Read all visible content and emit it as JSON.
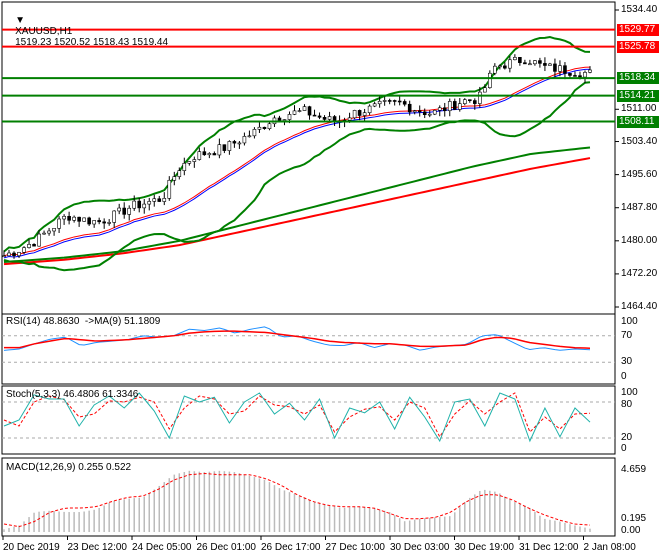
{
  "header": {
    "symbol": "XAUUSD,H1",
    "ohlc": "1519.23 1520.52 1518.43 1519.44"
  },
  "colors": {
    "bull": "#00aa00",
    "resistance": "#ff0000",
    "support": "#007f00",
    "ma_red": "#ff0000",
    "ma_green": "#008000",
    "rsi": "#1e90ff",
    "stoch": "#20b2aa"
  },
  "chart_data": [
    {
      "type": "candlestick",
      "panel": "price",
      "ylim": [
        1464.4,
        1534.4
      ],
      "y_ticks": [
        "1534.40",
        "1511.00",
        "1503.40",
        "1495.60",
        "1487.80",
        "1480.00",
        "1472.20",
        "1464.40"
      ],
      "levels": [
        {
          "value": "1529.77",
          "kind": "resistance"
        },
        {
          "value": "1525.78",
          "kind": "resistance"
        },
        {
          "value": "1518.34",
          "kind": "support"
        },
        {
          "value": "1514.21",
          "kind": "support"
        },
        {
          "value": "1508.11",
          "kind": "support"
        }
      ],
      "x_ticks": [
        "20 Dec 2019",
        "23 Dec 12:00",
        "24 Dec 05:00",
        "26 Dec 01:00",
        "26 Dec 17:00",
        "27 Dec 10:00",
        "30 Dec 03:00",
        "30 Dec 19:00",
        "31 Dec 12:00",
        "2 Jan 08:00"
      ],
      "close_approx": [
        1476.5,
        1478,
        1480,
        1483,
        1486,
        1485,
        1484.5,
        1486,
        1488,
        1489,
        1490,
        1497,
        1500,
        1501,
        1502,
        1504,
        1506,
        1509,
        1510,
        1510.5,
        1509,
        1508,
        1510,
        1511,
        1512,
        1512.5,
        1511,
        1510,
        1511.5,
        1513,
        1513.5,
        1521,
        1522,
        1523,
        1521,
        1520.5,
        1520,
        1519.44
      ],
      "ma_red": [
        1474.5,
        1475.5,
        1477,
        1479,
        1482,
        1485,
        1488,
        1491,
        1494,
        1497,
        1499.5
      ],
      "ma_green": [
        1475,
        1476,
        1477.5,
        1480,
        1483.5,
        1487,
        1490.5,
        1494,
        1497.5,
        1500.5,
        1502
      ]
    },
    {
      "type": "line",
      "panel": "rsi",
      "title": "RSI(14) 48.8630  ->MA(9) 51.1809",
      "ylim": [
        0,
        100
      ],
      "y_ticks": [
        "100",
        "70",
        "30",
        "0"
      ],
      "rsi": [
        48,
        50,
        58,
        65,
        68,
        55,
        60,
        62,
        64,
        70,
        68,
        70,
        80,
        78,
        82,
        74,
        80,
        84,
        68,
        70,
        62,
        56,
        55,
        60,
        52,
        58,
        56,
        48,
        53,
        55,
        57,
        70,
        72,
        60,
        49,
        52,
        48,
        50,
        48.86
      ],
      "ma": [
        52,
        52,
        58,
        62,
        66,
        64,
        62,
        63,
        64,
        66,
        68,
        70,
        74,
        76,
        77,
        77,
        76,
        75,
        72,
        69,
        66,
        62,
        60,
        59,
        58,
        58,
        56,
        54,
        54,
        55,
        56,
        64,
        68,
        66,
        60,
        57,
        54,
        52,
        51.18
      ]
    },
    {
      "type": "line",
      "panel": "stoch",
      "title": "Stoch(5,3,3) 46.4806 61.3346",
      "ylim": [
        0,
        100
      ],
      "y_ticks": [
        "100",
        "80",
        "20",
        "0"
      ],
      "main": [
        40,
        50,
        92,
        85,
        85,
        40,
        75,
        90,
        70,
        95,
        65,
        20,
        90,
        80,
        88,
        45,
        80,
        95,
        60,
        78,
        50,
        85,
        20,
        70,
        62,
        80,
        35,
        88,
        55,
        15,
        80,
        85,
        40,
        95,
        85,
        15,
        70,
        22,
        70,
        46.48
      ],
      "signal": [
        50,
        40,
        80,
        90,
        84,
        55,
        60,
        82,
        80,
        88,
        80,
        35,
        70,
        90,
        85,
        60,
        65,
        90,
        75,
        72,
        60,
        75,
        30,
        55,
        68,
        72,
        50,
        80,
        70,
        22,
        60,
        82,
        60,
        80,
        95,
        30,
        55,
        35,
        60,
        61.33
      ]
    },
    {
      "type": "bar+line",
      "panel": "macd",
      "title": "MACD(12,26,9) 0.255 0.522",
      "y_ticks": [
        "4.659",
        "0.195",
        "0.00"
      ],
      "histogram": [
        0.2,
        0.5,
        1.5,
        1.6,
        1.5,
        1.5,
        1.7,
        2.3,
        2.5,
        2.6,
        3.4,
        4.3,
        4.6,
        4.5,
        4.6,
        4.5,
        4.2,
        3.9,
        3.2,
        2.8,
        2.3,
        2.0,
        1.8,
        1.9,
        1.8,
        1.5,
        0.8,
        1.0,
        1.1,
        1.2,
        2.4,
        3.2,
        3.0,
        2.3,
        1.9,
        1.0,
        0.8,
        0.5,
        0.25
      ],
      "signal": [
        0.6,
        0.4,
        0.8,
        1.5,
        1.8,
        1.8,
        1.9,
        2.3,
        2.6,
        2.7,
        3.2,
        3.9,
        4.3,
        4.4,
        4.3,
        4.3,
        4.3,
        4.0,
        3.5,
        2.8,
        2.3,
        2.0,
        1.9,
        1.9,
        1.8,
        1.4,
        1.0,
        1.0,
        1.1,
        1.5,
        2.3,
        2.8,
        2.8,
        2.4,
        1.8,
        1.3,
        0.9,
        0.6,
        0.52
      ]
    }
  ]
}
